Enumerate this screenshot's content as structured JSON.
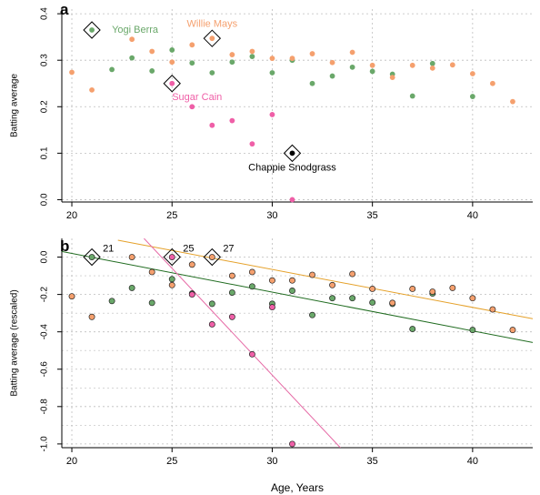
{
  "colors": {
    "green": "#6aa86a",
    "orange": "#f5a06e",
    "pink": "#ef5fa7",
    "black": "#000000",
    "grid": "#bdbdbd",
    "fit_green": "#1f6b1f",
    "fit_orange": "#e5a12a",
    "fit_pink": "#e66aa6"
  },
  "figure": {
    "xlabel": "Age, Years"
  },
  "chart_data": [
    {
      "panel_letter": "a",
      "type": "scatter",
      "xlabel": "",
      "ylabel": "Batting average",
      "xlim": [
        19.5,
        43
      ],
      "ylim": [
        -0.005,
        0.41
      ],
      "x_ticks": [
        20,
        25,
        30,
        35,
        40
      ],
      "y_ticks": [
        0.0,
        0.1,
        0.2,
        0.3,
        0.4
      ],
      "y_tick_labels": [
        "0.0",
        "0.1",
        "0.2",
        "0.3",
        "0.4"
      ],
      "grid": true,
      "series": [
        {
          "name": "Yogi Berra",
          "color_key": "green",
          "points": [
            [
              21,
              0.365
            ],
            [
              22,
              0.28
            ],
            [
              23,
              0.305
            ],
            [
              24,
              0.277
            ],
            [
              25,
              0.322
            ],
            [
              26,
              0.294
            ],
            [
              27,
              0.273
            ],
            [
              28,
              0.296
            ],
            [
              29,
              0.308
            ],
            [
              30,
              0.273
            ],
            [
              31,
              0.3
            ],
            [
              32,
              0.25
            ],
            [
              33,
              0.266
            ],
            [
              34,
              0.285
            ],
            [
              35,
              0.276
            ],
            [
              36,
              0.27
            ],
            [
              37,
              0.223
            ],
            [
              38,
              0.293
            ],
            [
              40,
              0.222
            ]
          ]
        },
        {
          "name": "Willie Mays",
          "color_key": "orange",
          "points": [
            [
              20,
              0.274
            ],
            [
              21,
              0.236
            ],
            [
              23,
              0.345
            ],
            [
              24,
              0.319
            ],
            [
              25,
              0.296
            ],
            [
              26,
              0.333
            ],
            [
              27,
              0.347
            ],
            [
              28,
              0.312
            ],
            [
              29,
              0.319
            ],
            [
              30,
              0.304
            ],
            [
              31,
              0.304
            ],
            [
              32,
              0.314
            ],
            [
              33,
              0.295
            ],
            [
              34,
              0.317
            ],
            [
              35,
              0.289
            ],
            [
              36,
              0.263
            ],
            [
              37,
              0.289
            ],
            [
              38,
              0.283
            ],
            [
              39,
              0.29
            ],
            [
              40,
              0.271
            ],
            [
              41,
              0.25
            ],
            [
              42,
              0.211
            ]
          ]
        },
        {
          "name": "Sugar Cain",
          "color_key": "pink",
          "points": [
            [
              25,
              0.25
            ],
            [
              26,
              0.2
            ],
            [
              27,
              0.16
            ],
            [
              28,
              0.17
            ],
            [
              29,
              0.12
            ],
            [
              30,
              0.183
            ],
            [
              31,
              0.0
            ]
          ]
        },
        {
          "name": "Chappie Snodgrass",
          "color_key": "black",
          "points": [
            [
              31,
              0.1
            ]
          ]
        }
      ],
      "highlighted": [
        {
          "series": "Yogi Berra",
          "x": 21,
          "y": 0.365
        },
        {
          "series": "Willie Mays",
          "x": 27,
          "y": 0.347
        },
        {
          "series": "Sugar Cain",
          "x": 25,
          "y": 0.25
        },
        {
          "series": "Chappie Snodgrass",
          "x": 31,
          "y": 0.1
        }
      ],
      "annotations": [
        {
          "text": "Yogi Berra",
          "color_key": "green",
          "x": 22,
          "y": 0.365,
          "anchor": "start"
        },
        {
          "text": "Willie Mays",
          "color_key": "orange",
          "x": 27,
          "y": 0.378,
          "anchor": "middle"
        },
        {
          "text": "Sugar Cain",
          "color_key": "pink",
          "x": 25,
          "y": 0.22,
          "anchor": "start"
        },
        {
          "text": "Chappie Snodgrass",
          "color_key": "black",
          "x": 31,
          "y": 0.068,
          "anchor": "middle"
        }
      ]
    },
    {
      "panel_letter": "b",
      "type": "scatter",
      "xlabel": "Age, Years",
      "ylabel": "Batting average (rescaled)",
      "xlim": [
        19.5,
        43
      ],
      "ylim": [
        -1.02,
        0.1
      ],
      "x_ticks": [
        20,
        25,
        30,
        35,
        40
      ],
      "y_ticks": [
        0.0,
        -0.2,
        -0.4,
        -0.6,
        -0.8,
        -1.0
      ],
      "y_tick_labels": [
        "0.0",
        "-0.2",
        "-0.4",
        "-0.6",
        "-0.8",
        "-1.0"
      ],
      "grid": true,
      "series": [
        {
          "name": "Yogi Berra",
          "color_key": "green",
          "points": [
            [
              21,
              0.0
            ],
            [
              22,
              -0.235
            ],
            [
              23,
              -0.165
            ],
            [
              24,
              -0.245
            ],
            [
              25,
              -0.118
            ],
            [
              26,
              -0.195
            ],
            [
              27,
              -0.25
            ],
            [
              28,
              -0.19
            ],
            [
              29,
              -0.157
            ],
            [
              30,
              -0.25
            ],
            [
              31,
              -0.18
            ],
            [
              32,
              -0.31
            ],
            [
              33,
              -0.22
            ],
            [
              34,
              -0.22
            ],
            [
              35,
              -0.243
            ],
            [
              36,
              -0.25
            ],
            [
              37,
              -0.385
            ],
            [
              38,
              -0.195
            ],
            [
              40,
              -0.39
            ]
          ]
        },
        {
          "name": "Willie Mays",
          "color_key": "orange",
          "points": [
            [
              20,
              -0.21
            ],
            [
              21,
              -0.32
            ],
            [
              23,
              0.0
            ],
            [
              24,
              -0.08
            ],
            [
              25,
              -0.15
            ],
            [
              26,
              -0.04
            ],
            [
              27,
              0.0
            ],
            [
              28,
              -0.1
            ],
            [
              29,
              -0.08
            ],
            [
              30,
              -0.125
            ],
            [
              31,
              -0.125
            ],
            [
              32,
              -0.095
            ],
            [
              33,
              -0.15
            ],
            [
              34,
              -0.09
            ],
            [
              35,
              -0.17
            ],
            [
              36,
              -0.245
            ],
            [
              37,
              -0.17
            ],
            [
              38,
              -0.185
            ],
            [
              39,
              -0.165
            ],
            [
              40,
              -0.22
            ],
            [
              41,
              -0.28
            ],
            [
              42,
              -0.39
            ]
          ]
        },
        {
          "name": "Sugar Cain",
          "color_key": "pink",
          "points": [
            [
              25,
              0.0
            ],
            [
              26,
              -0.2
            ],
            [
              27,
              -0.36
            ],
            [
              28,
              -0.32
            ],
            [
              29,
              -0.52
            ],
            [
              30,
              -0.268
            ],
            [
              31,
              -1.0
            ]
          ]
        }
      ],
      "highlighted": [
        {
          "series": "Yogi Berra",
          "x": 21,
          "y": 0.0,
          "label": "21"
        },
        {
          "series": "Sugar Cain",
          "x": 25,
          "y": 0.0,
          "label": "25"
        },
        {
          "series": "Willie Mays",
          "x": 27,
          "y": 0.0,
          "label": "27"
        }
      ],
      "fit_lines": [
        {
          "series": "Yogi Berra",
          "color_key": "fit_green",
          "from": [
            19.5,
            0.03
          ],
          "to": [
            43,
            -0.457
          ]
        },
        {
          "series": "Willie Mays",
          "color_key": "fit_orange",
          "from": [
            22.3,
            0.09
          ],
          "to": [
            43,
            -0.33
          ]
        },
        {
          "series": "Sugar Cain",
          "color_key": "fit_pink",
          "from": [
            23.6,
            0.1
          ],
          "to": [
            33.4,
            -1.02
          ]
        }
      ]
    }
  ]
}
